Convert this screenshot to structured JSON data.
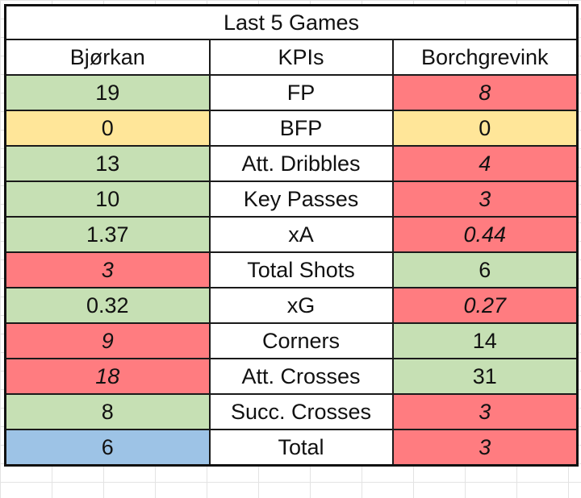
{
  "table": {
    "title": "Last 5 Games",
    "headers": {
      "left": "Bjørkan",
      "middle": "KPIs",
      "right": "Borchgrevink"
    },
    "rows": [
      {
        "kpi": "FP",
        "left": "19",
        "left_status": "good",
        "right": "8",
        "right_status": "bad"
      },
      {
        "kpi": "BFP",
        "left": "0",
        "left_status": "neutral",
        "right": "0",
        "right_status": "neutral"
      },
      {
        "kpi": "Att. Dribbles",
        "left": "13",
        "left_status": "good",
        "right": "4",
        "right_status": "bad"
      },
      {
        "kpi": "Key Passes",
        "left": "10",
        "left_status": "good",
        "right": "3",
        "right_status": "bad"
      },
      {
        "kpi": "xA",
        "left": "1.37",
        "left_status": "good",
        "right": "0.44",
        "right_status": "bad"
      },
      {
        "kpi": "Total Shots",
        "left": "3",
        "left_status": "bad",
        "right": "6",
        "right_status": "good"
      },
      {
        "kpi": "xG",
        "left": "0.32",
        "left_status": "good",
        "right": "0.27",
        "right_status": "bad"
      },
      {
        "kpi": "Corners",
        "left": "9",
        "left_status": "bad",
        "right": "14",
        "right_status": "good"
      },
      {
        "kpi": "Att. Crosses",
        "left": "18",
        "left_status": "bad",
        "right": "31",
        "right_status": "good"
      },
      {
        "kpi": "Succ. Crosses",
        "left": "8",
        "left_status": "good",
        "right": "3",
        "right_status": "bad"
      }
    ],
    "total": {
      "kpi": "Total",
      "left": "6",
      "left_status": "total-blue",
      "right": "3",
      "right_status": "bad"
    }
  },
  "colors": {
    "good_fill": "#c6e0b4",
    "good_text": "#375623",
    "bad_fill": "#ff7c80",
    "bad_text": "#c00000",
    "neutral_fill": "#ffe699",
    "total_fill": "#9dc3e6",
    "total_text": "#1f4e79"
  }
}
